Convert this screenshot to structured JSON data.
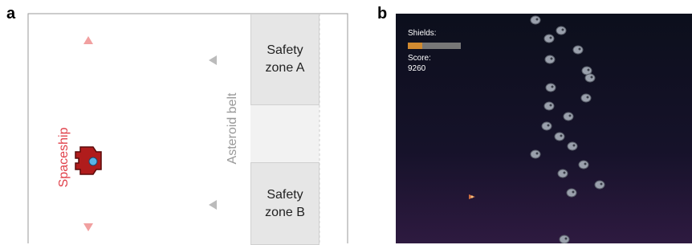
{
  "panel_a": {
    "label": "a",
    "spaceship": "Spaceship",
    "asteroid_belt": "Asteroid belt",
    "zone_a": "Safety zone A",
    "zone_b": "Safety zone B"
  },
  "panel_b": {
    "label": "b",
    "shields": "Shields:",
    "score_label": "Score:",
    "score": "9260"
  }
}
